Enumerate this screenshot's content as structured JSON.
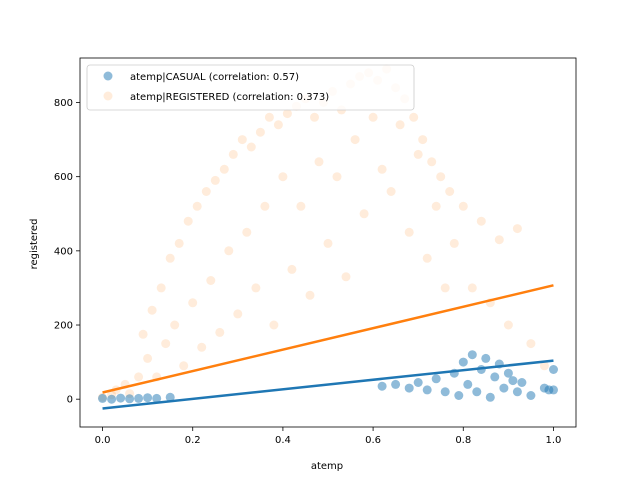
{
  "chart_data": {
    "type": "scatter",
    "title": "",
    "xlabel": "atemp",
    "ylabel": "registered",
    "xlim": [
      -0.05,
      1.05
    ],
    "ylim": [
      -75,
      920
    ],
    "x_ticks": [
      "0.0",
      "0.2",
      "0.4",
      "0.6",
      "0.8",
      "1.0"
    ],
    "x_tick_values": [
      0.0,
      0.2,
      0.4,
      0.6,
      0.8,
      1.0
    ],
    "y_ticks": [
      "0",
      "200",
      "400",
      "600",
      "800"
    ],
    "y_tick_values": [
      0,
      200,
      400,
      600,
      800
    ],
    "grid": false,
    "legend_position": "top-left",
    "series": [
      {
        "name": "atemp|REGISTERED (correlation: 0.373)",
        "color": "#ff7f0e",
        "marker_alpha": 0.15,
        "trend_line": {
          "x": [
            0.0,
            1.0
          ],
          "y": [
            18,
            307
          ]
        },
        "points": [
          [
            0.0,
            5
          ],
          [
            0.02,
            12
          ],
          [
            0.03,
            25
          ],
          [
            0.05,
            40
          ],
          [
            0.06,
            15
          ],
          [
            0.08,
            60
          ],
          [
            0.09,
            175
          ],
          [
            0.1,
            110
          ],
          [
            0.11,
            240
          ],
          [
            0.12,
            60
          ],
          [
            0.13,
            300
          ],
          [
            0.14,
            150
          ],
          [
            0.15,
            380
          ],
          [
            0.16,
            200
          ],
          [
            0.17,
            420
          ],
          [
            0.18,
            90
          ],
          [
            0.19,
            480
          ],
          [
            0.2,
            260
          ],
          [
            0.21,
            520
          ],
          [
            0.22,
            140
          ],
          [
            0.23,
            560
          ],
          [
            0.24,
            320
          ],
          [
            0.25,
            590
          ],
          [
            0.26,
            180
          ],
          [
            0.27,
            620
          ],
          [
            0.28,
            400
          ],
          [
            0.29,
            660
          ],
          [
            0.3,
            230
          ],
          [
            0.31,
            700
          ],
          [
            0.32,
            450
          ],
          [
            0.33,
            680
          ],
          [
            0.34,
            300
          ],
          [
            0.35,
            720
          ],
          [
            0.36,
            520
          ],
          [
            0.37,
            760
          ],
          [
            0.38,
            200
          ],
          [
            0.39,
            740
          ],
          [
            0.4,
            600
          ],
          [
            0.41,
            770
          ],
          [
            0.42,
            350
          ],
          [
            0.43,
            790
          ],
          [
            0.44,
            520
          ],
          [
            0.45,
            810
          ],
          [
            0.46,
            280
          ],
          [
            0.47,
            760
          ],
          [
            0.48,
            640
          ],
          [
            0.49,
            800
          ],
          [
            0.5,
            420
          ],
          [
            0.51,
            830
          ],
          [
            0.52,
            600
          ],
          [
            0.53,
            780
          ],
          [
            0.54,
            330
          ],
          [
            0.55,
            850
          ],
          [
            0.56,
            700
          ],
          [
            0.57,
            870
          ],
          [
            0.58,
            500
          ],
          [
            0.59,
            880
          ],
          [
            0.6,
            760
          ],
          [
            0.61,
            860
          ],
          [
            0.62,
            620
          ],
          [
            0.63,
            890
          ],
          [
            0.64,
            560
          ],
          [
            0.65,
            840
          ],
          [
            0.66,
            740
          ],
          [
            0.67,
            810
          ],
          [
            0.68,
            450
          ],
          [
            0.69,
            760
          ],
          [
            0.7,
            660
          ],
          [
            0.71,
            700
          ],
          [
            0.72,
            380
          ],
          [
            0.73,
            640
          ],
          [
            0.74,
            520
          ],
          [
            0.75,
            600
          ],
          [
            0.76,
            300
          ],
          [
            0.77,
            560
          ],
          [
            0.78,
            420
          ],
          [
            0.8,
            520
          ],
          [
            0.82,
            300
          ],
          [
            0.84,
            480
          ],
          [
            0.86,
            260
          ],
          [
            0.88,
            430
          ],
          [
            0.9,
            200
          ],
          [
            0.92,
            460
          ],
          [
            0.95,
            150
          ],
          [
            0.98,
            90
          ]
        ]
      },
      {
        "name": "atemp|CASUAL (correlation: 0.57)",
        "color": "#1f77b4",
        "marker_alpha": 0.5,
        "trend_line": {
          "x": [
            0.0,
            1.0
          ],
          "y": [
            -25,
            104
          ]
        },
        "points": [
          [
            0.0,
            2
          ],
          [
            0.02,
            0
          ],
          [
            0.04,
            3
          ],
          [
            0.06,
            1
          ],
          [
            0.08,
            2
          ],
          [
            0.1,
            4
          ],
          [
            0.12,
            2
          ],
          [
            0.15,
            5
          ],
          [
            0.62,
            35
          ],
          [
            0.65,
            40
          ],
          [
            0.68,
            30
          ],
          [
            0.7,
            45
          ],
          [
            0.72,
            25
          ],
          [
            0.74,
            55
          ],
          [
            0.76,
            20
          ],
          [
            0.78,
            70
          ],
          [
            0.79,
            10
          ],
          [
            0.8,
            100
          ],
          [
            0.81,
            40
          ],
          [
            0.82,
            120
          ],
          [
            0.83,
            20
          ],
          [
            0.84,
            80
          ],
          [
            0.85,
            110
          ],
          [
            0.86,
            5
          ],
          [
            0.87,
            60
          ],
          [
            0.88,
            95
          ],
          [
            0.89,
            30
          ],
          [
            0.9,
            70
          ],
          [
            0.91,
            50
          ],
          [
            0.92,
            20
          ],
          [
            0.93,
            45
          ],
          [
            0.95,
            10
          ],
          [
            0.98,
            30
          ],
          [
            0.99,
            25
          ],
          [
            1.0,
            25
          ],
          [
            1.0,
            80
          ]
        ]
      }
    ]
  }
}
